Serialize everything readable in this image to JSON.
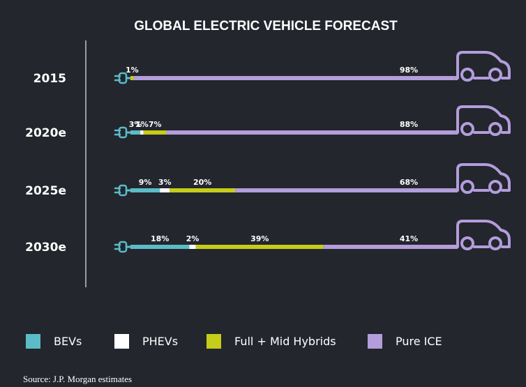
{
  "chart_data": {
    "type": "bar",
    "stacked": true,
    "orientation": "horizontal",
    "title": "GLOBAL ELECTRIC VEHICLE FORECAST",
    "categories": [
      "2015",
      "2020e",
      "2025e",
      "2030e"
    ],
    "series": [
      {
        "name": "BEVs",
        "color": "#5bbcc8",
        "values": [
          0,
          3,
          9,
          18
        ],
        "labels": [
          "",
          "3%",
          "9%",
          "18%"
        ]
      },
      {
        "name": "PHEVs",
        "color": "#ffffff",
        "values": [
          0,
          1,
          3,
          2
        ],
        "labels": [
          "",
          "1%",
          "3%",
          "2%"
        ]
      },
      {
        "name": "Full + Mid Hybrids",
        "color": "#c6cc1a",
        "values": [
          1,
          7,
          20,
          39
        ],
        "labels": [
          "1%",
          "7%",
          "20%",
          "39%"
        ]
      },
      {
        "name": "Pure ICE",
        "color": "#b39ddb",
        "values": [
          98,
          88,
          68,
          41
        ],
        "labels": [
          "98%",
          "88%",
          "68%",
          "41%"
        ]
      }
    ],
    "legend_position": "bottom",
    "grid": false,
    "source": "Source: J.P. Morgan estimates",
    "icons": {
      "start": "plug-icon",
      "end": "car-icon"
    }
  }
}
